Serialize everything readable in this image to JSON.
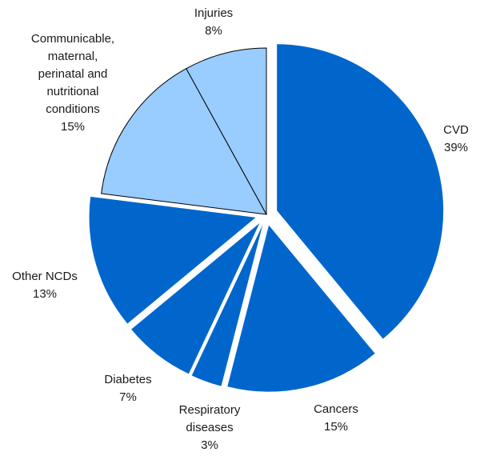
{
  "chart_data": {
    "type": "pie",
    "slices": [
      {
        "name": "CVD",
        "lines": [
          "CVD"
        ],
        "value": 39,
        "value_label": "39%",
        "color": "#0066cc",
        "exploded": true
      },
      {
        "name": "Cancers",
        "lines": [
          "Cancers"
        ],
        "value": 15,
        "value_label": "15%",
        "color": "#0066cc",
        "exploded": true
      },
      {
        "name": "Respiratory diseases",
        "lines": [
          "Respiratory",
          "diseases"
        ],
        "value": 3,
        "value_label": "3%",
        "color": "#0066cc",
        "exploded": true
      },
      {
        "name": "Diabetes",
        "lines": [
          "Diabetes"
        ],
        "value": 7,
        "value_label": "7%",
        "color": "#0066cc",
        "exploded": true
      },
      {
        "name": "Other NCDs",
        "lines": [
          "Other NCDs"
        ],
        "value": 13,
        "value_label": "13%",
        "color": "#0066cc",
        "exploded": true
      },
      {
        "name": "Communicable, maternal, perinatal and nutritional conditions",
        "lines": [
          "Communicable,",
          "maternal,",
          "perinatal and",
          "nutritional",
          "conditions"
        ],
        "value": 15,
        "value_label": "15%",
        "color": "#99ccff",
        "exploded": false
      },
      {
        "name": "Injuries",
        "lines": [
          "Injuries"
        ],
        "value": 8,
        "value_label": "8%",
        "color": "#99ccff",
        "exploded": false
      }
    ],
    "start_angle_deg": 0,
    "direction": "clockwise",
    "legend": "none",
    "colors": {
      "ncd": "#0066cc",
      "other": "#99ccff",
      "stroke": "#000000"
    }
  }
}
